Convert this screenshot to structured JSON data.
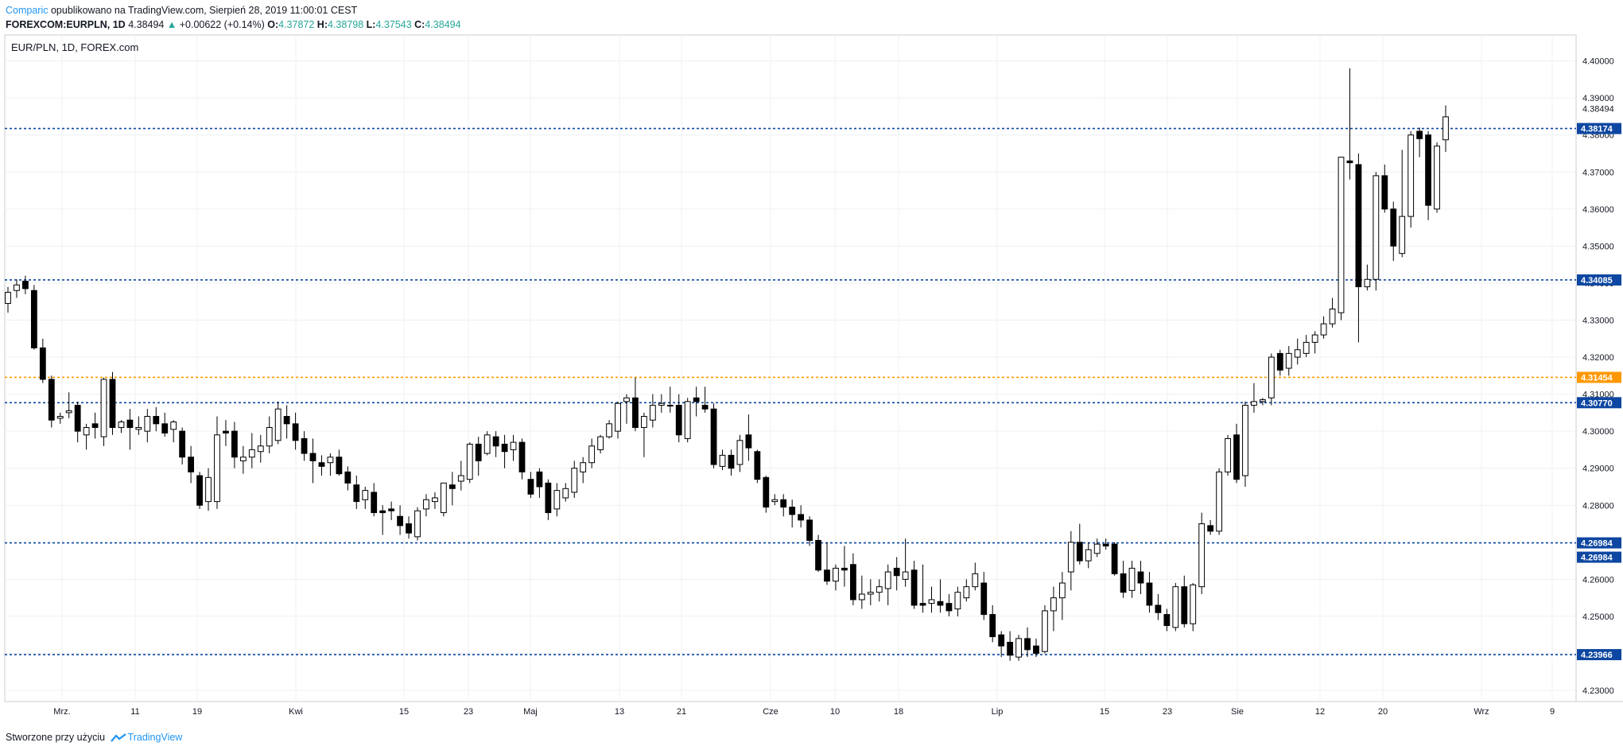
{
  "header": {
    "author": "Comparic",
    "published_text": "opublikowano na TradingView.com, Sierpień 28, 2019 11:00:01 CEST",
    "symbol_line": "FOREXCOM:EURPLN, 1D",
    "last_price": "4.38494",
    "change": "+0.00622 (+0.14%)",
    "o_label": "O:",
    "o_value": "4.37872",
    "h_label": "H:",
    "h_value": "4.38798",
    "l_label": "L:",
    "l_value": "4.37543",
    "c_label": "C:",
    "c_value": "4.38494"
  },
  "chart_title": "EUR/PLN, 1D, FOREX.com",
  "footer": {
    "prefix": "Stworzone przy użyciu",
    "brand": "TradingView"
  },
  "colors": {
    "grid": "#eef0f3",
    "hline_blue": "#0d47a1",
    "hline_orange": "#ff9800",
    "candle_down": "#000000",
    "candle_up": "#ffffff",
    "label_bg": "#0d47a1"
  },
  "chart_data": {
    "type": "candlestick",
    "title": "EUR/PLN, 1D, FOREX.com",
    "ylim": [
      4.227,
      4.407
    ],
    "y_ticks": [
      "4.23000",
      "4.24000",
      "4.25000",
      "4.26000",
      "4.27000",
      "4.28000",
      "4.29000",
      "4.30000",
      "4.31000",
      "4.32000",
      "4.33000",
      "4.34000",
      "4.35000",
      "4.36000",
      "4.37000",
      "4.38000",
      "4.39000",
      "4.40000"
    ],
    "x_labels": [
      "Mrz.",
      "11",
      "19",
      "Kwi",
      "15",
      "23",
      "Maj",
      "13",
      "21",
      "Cze",
      "10",
      "18",
      "Lip",
      "15",
      "23",
      "Sie",
      "12",
      "20",
      "Wrz",
      "9"
    ],
    "horizontal_lines": [
      {
        "value": 4.38174,
        "label": "4.38174",
        "color": "blue"
      },
      {
        "value": 4.34085,
        "label": "4.34085",
        "color": "blue"
      },
      {
        "value": 4.31454,
        "label": "4.31454",
        "color": "orange"
      },
      {
        "value": 4.3077,
        "label": "4.30770",
        "color": "blue"
      },
      {
        "value": 4.26984,
        "label": "4.26984",
        "color": "blue"
      },
      {
        "value": 4.23966,
        "label": "4.23966",
        "color": "blue"
      }
    ],
    "extra_price_labels": [
      {
        "value": 4.38494,
        "label": "4.38494"
      },
      {
        "value": 4.26984,
        "label": "4.26984"
      }
    ],
    "candles": [
      [
        4.3345,
        4.339,
        4.332,
        4.3375
      ],
      [
        4.338,
        4.341,
        4.336,
        4.3395
      ],
      [
        4.3405,
        4.342,
        4.337,
        4.3385
      ],
      [
        4.338,
        4.3395,
        4.322,
        4.3225
      ],
      [
        4.3225,
        4.325,
        4.313,
        4.314
      ],
      [
        4.314,
        4.315,
        4.301,
        4.303
      ],
      [
        4.3035,
        4.305,
        4.302,
        4.304
      ],
      [
        4.305,
        4.3105,
        4.3035,
        4.3055
      ],
      [
        4.307,
        4.308,
        4.297,
        4.3
      ],
      [
        4.299,
        4.302,
        4.295,
        4.301
      ],
      [
        4.302,
        4.305,
        4.298,
        4.301
      ],
      [
        4.2985,
        4.3145,
        4.296,
        4.314
      ],
      [
        4.314,
        4.316,
        4.299,
        4.301
      ],
      [
        4.301,
        4.303,
        4.2995,
        4.3025
      ],
      [
        4.303,
        4.306,
        4.295,
        4.301
      ],
      [
        4.3005,
        4.304,
        4.299,
        4.301
      ],
      [
        4.3,
        4.306,
        4.297,
        4.304
      ],
      [
        4.304,
        4.3065,
        4.3,
        4.302
      ],
      [
        4.302,
        4.305,
        4.2985,
        4.2995
      ],
      [
        4.3005,
        4.303,
        4.297,
        4.3025
      ],
      [
        4.3,
        4.301,
        4.291,
        4.293
      ],
      [
        4.293,
        4.296,
        4.286,
        4.289
      ],
      [
        4.288,
        4.289,
        4.279,
        4.28
      ],
      [
        4.281,
        4.29,
        4.2785,
        4.2875
      ],
      [
        4.281,
        4.304,
        4.279,
        4.299
      ],
      [
        4.3,
        4.303,
        4.296,
        4.2995
      ],
      [
        4.3,
        4.3025,
        4.29,
        4.293
      ],
      [
        4.292,
        4.296,
        4.2885,
        4.293
      ],
      [
        4.293,
        4.2995,
        4.29,
        4.295
      ],
      [
        4.2945,
        4.299,
        4.2915,
        4.296
      ],
      [
        4.296,
        4.304,
        4.294,
        4.301
      ],
      [
        4.2975,
        4.308,
        4.2965,
        4.306
      ],
      [
        4.304,
        4.307,
        4.298,
        4.302
      ],
      [
        4.302,
        4.305,
        4.295,
        4.2975
      ],
      [
        4.298,
        4.3,
        4.292,
        4.294
      ],
      [
        4.294,
        4.298,
        4.286,
        4.292
      ],
      [
        4.2915,
        4.2935,
        4.288,
        4.2905
      ],
      [
        4.2915,
        4.294,
        4.288,
        4.293
      ],
      [
        4.293,
        4.295,
        4.288,
        4.2885
      ],
      [
        4.289,
        4.2905,
        4.284,
        4.286
      ],
      [
        4.2855,
        4.288,
        4.279,
        4.281
      ],
      [
        4.2815,
        4.285,
        4.279,
        4.284
      ],
      [
        4.2835,
        4.286,
        4.277,
        4.278
      ],
      [
        4.2785,
        4.28,
        4.272,
        4.278
      ],
      [
        4.279,
        4.281,
        4.276,
        4.2785
      ],
      [
        4.277,
        4.28,
        4.272,
        4.2745
      ],
      [
        4.275,
        4.277,
        4.271,
        4.2725
      ],
      [
        4.2715,
        4.2795,
        4.2705,
        4.2785
      ],
      [
        4.279,
        4.283,
        4.277,
        4.2815
      ],
      [
        4.281,
        4.2835,
        4.279,
        4.282
      ],
      [
        4.278,
        4.286,
        4.277,
        4.286
      ],
      [
        4.2855,
        4.289,
        4.28,
        4.2845
      ],
      [
        4.2865,
        4.292,
        4.284,
        4.288
      ],
      [
        4.287,
        4.297,
        4.286,
        4.2965
      ],
      [
        4.2965,
        4.2985,
        4.288,
        4.292
      ],
      [
        4.294,
        4.3,
        4.2935,
        4.299
      ],
      [
        4.2985,
        4.3,
        4.293,
        4.296
      ],
      [
        4.2965,
        4.299,
        4.29,
        4.2945
      ],
      [
        4.295,
        4.299,
        4.292,
        4.297
      ],
      [
        4.297,
        4.298,
        4.287,
        4.289
      ],
      [
        4.287,
        4.289,
        4.282,
        4.283
      ],
      [
        4.289,
        4.29,
        4.282,
        4.285
      ],
      [
        4.286,
        4.287,
        4.276,
        4.278
      ],
      [
        4.279,
        4.286,
        4.277,
        4.284
      ],
      [
        4.282,
        4.286,
        4.281,
        4.2845
      ],
      [
        4.2835,
        4.292,
        4.282,
        4.29
      ],
      [
        4.289,
        4.293,
        4.286,
        4.2915
      ],
      [
        4.2915,
        4.298,
        4.29,
        4.296
      ],
      [
        4.295,
        4.299,
        4.294,
        4.2985
      ],
      [
        4.2985,
        4.303,
        4.298,
        4.302
      ],
      [
        4.3,
        4.308,
        4.298,
        4.3075
      ],
      [
        4.308,
        4.31,
        4.302,
        4.309
      ],
      [
        4.309,
        4.3145,
        4.3,
        4.301
      ],
      [
        4.301,
        4.305,
        4.293,
        4.304
      ],
      [
        4.303,
        4.31,
        4.301,
        4.307
      ],
      [
        4.307,
        4.31,
        4.305,
        4.3075
      ],
      [
        4.307,
        4.312,
        4.305,
        4.307
      ],
      [
        4.307,
        4.31,
        4.297,
        4.299
      ],
      [
        4.298,
        4.309,
        4.297,
        4.308
      ],
      [
        4.309,
        4.312,
        4.304,
        4.308
      ],
      [
        4.307,
        4.312,
        4.305,
        4.306
      ],
      [
        4.306,
        4.3075,
        4.29,
        4.291
      ],
      [
        4.2905,
        4.295,
        4.2895,
        4.2935
      ],
      [
        4.2935,
        4.295,
        4.288,
        4.29
      ],
      [
        4.291,
        4.299,
        4.289,
        4.2975
      ],
      [
        4.299,
        4.3045,
        4.292,
        4.2955
      ],
      [
        4.2945,
        4.295,
        4.286,
        4.287
      ],
      [
        4.2875,
        4.288,
        4.278,
        4.2795
      ],
      [
        4.281,
        4.283,
        4.28,
        4.2815
      ],
      [
        4.2815,
        4.283,
        4.277,
        4.2795
      ],
      [
        4.2795,
        4.2815,
        4.274,
        4.2775
      ],
      [
        4.2775,
        4.28,
        4.274,
        4.276
      ],
      [
        4.276,
        4.277,
        4.269,
        4.2705
      ],
      [
        4.2705,
        4.272,
        4.262,
        4.2625
      ],
      [
        4.2625,
        4.27,
        4.2585,
        4.2595
      ],
      [
        4.2595,
        4.264,
        4.257,
        4.263
      ],
      [
        4.263,
        4.269,
        4.258,
        4.2625
      ],
      [
        4.264,
        4.267,
        4.253,
        4.2545
      ],
      [
        4.2545,
        4.261,
        4.252,
        4.256
      ],
      [
        4.256,
        4.26,
        4.253,
        4.2565
      ],
      [
        4.2565,
        4.26,
        4.254,
        4.258
      ],
      [
        4.2575,
        4.264,
        4.253,
        4.262
      ],
      [
        4.263,
        4.266,
        4.257,
        4.261
      ],
      [
        4.26,
        4.271,
        4.258,
        4.262
      ],
      [
        4.2625,
        4.265,
        4.252,
        4.253
      ],
      [
        4.2535,
        4.264,
        4.251,
        4.253
      ],
      [
        4.2535,
        4.258,
        4.251,
        4.2545
      ],
      [
        4.254,
        4.26,
        4.251,
        4.253
      ],
      [
        4.2535,
        4.256,
        4.25,
        4.2515
      ],
      [
        4.252,
        4.258,
        4.25,
        4.2565
      ],
      [
        4.255,
        4.26,
        4.254,
        4.258
      ],
      [
        4.258,
        4.2645,
        4.257,
        4.2615
      ],
      [
        4.259,
        4.262,
        4.249,
        4.2505
      ],
      [
        4.2505,
        4.253,
        4.243,
        4.2445
      ],
      [
        4.245,
        4.246,
        4.239,
        4.242
      ],
      [
        4.243,
        4.246,
        4.238,
        4.2395
      ],
      [
        4.239,
        4.245,
        4.238,
        4.244
      ],
      [
        4.244,
        4.247,
        4.239,
        4.241
      ],
      [
        4.242,
        4.244,
        4.239,
        4.24
      ],
      [
        4.2405,
        4.253,
        4.24,
        4.2515
      ],
      [
        4.2515,
        4.258,
        4.246,
        4.255
      ],
      [
        4.255,
        4.262,
        4.249,
        4.259
      ],
      [
        4.262,
        4.273,
        4.257,
        4.27
      ],
      [
        4.27,
        4.275,
        4.264,
        4.265
      ],
      [
        4.265,
        4.27,
        4.263,
        4.268
      ],
      [
        4.267,
        4.271,
        4.266,
        4.2695
      ],
      [
        4.2695,
        4.271,
        4.268,
        4.269
      ],
      [
        4.2695,
        4.27,
        4.261,
        4.2615
      ],
      [
        4.2615,
        4.265,
        4.255,
        4.2565
      ],
      [
        4.257,
        4.265,
        4.255,
        4.263
      ],
      [
        4.262,
        4.265,
        4.256,
        4.259
      ],
      [
        4.259,
        4.262,
        4.251,
        4.253
      ],
      [
        4.253,
        4.256,
        4.249,
        4.251
      ],
      [
        4.2505,
        4.252,
        4.246,
        4.2475
      ],
      [
        4.247,
        4.259,
        4.246,
        4.258
      ],
      [
        4.258,
        4.261,
        4.247,
        4.248
      ],
      [
        4.248,
        4.259,
        4.246,
        4.2585
      ],
      [
        4.258,
        4.278,
        4.256,
        4.275
      ],
      [
        4.2745,
        4.276,
        4.272,
        4.273
      ],
      [
        4.273,
        4.29,
        4.272,
        4.289
      ],
      [
        4.289,
        4.299,
        4.288,
        4.298
      ],
      [
        4.299,
        4.302,
        4.286,
        4.287
      ],
      [
        4.288,
        4.308,
        4.285,
        4.307
      ],
      [
        4.307,
        4.313,
        4.305,
        4.308
      ],
      [
        4.308,
        4.309,
        4.307,
        4.3085
      ],
      [
        4.309,
        4.321,
        4.307,
        4.32
      ],
      [
        4.321,
        4.322,
        4.315,
        4.3165
      ],
      [
        4.317,
        4.323,
        4.315,
        4.321
      ],
      [
        4.32,
        4.325,
        4.318,
        4.322
      ],
      [
        4.321,
        4.326,
        4.32,
        4.324
      ],
      [
        4.324,
        4.327,
        4.321,
        4.326
      ],
      [
        4.326,
        4.331,
        4.325,
        4.329
      ],
      [
        4.329,
        4.336,
        4.328,
        4.333
      ],
      [
        4.332,
        4.373,
        4.33,
        4.374
      ],
      [
        4.373,
        4.398,
        4.368,
        4.3725
      ],
      [
        4.372,
        4.375,
        4.324,
        4.339
      ],
      [
        4.339,
        4.345,
        4.338,
        4.341
      ],
      [
        4.341,
        4.37,
        4.338,
        4.369
      ],
      [
        4.369,
        4.372,
        4.359,
        4.36
      ],
      [
        4.36,
        4.362,
        4.346,
        4.35
      ],
      [
        4.348,
        4.376,
        4.347,
        4.358
      ],
      [
        4.358,
        4.381,
        4.355,
        4.38
      ],
      [
        4.381,
        4.382,
        4.374,
        4.379
      ],
      [
        4.38,
        4.381,
        4.357,
        4.361
      ],
      [
        4.36,
        4.378,
        4.359,
        4.377
      ],
      [
        4.3787,
        4.388,
        4.3754,
        4.3849
      ]
    ]
  }
}
